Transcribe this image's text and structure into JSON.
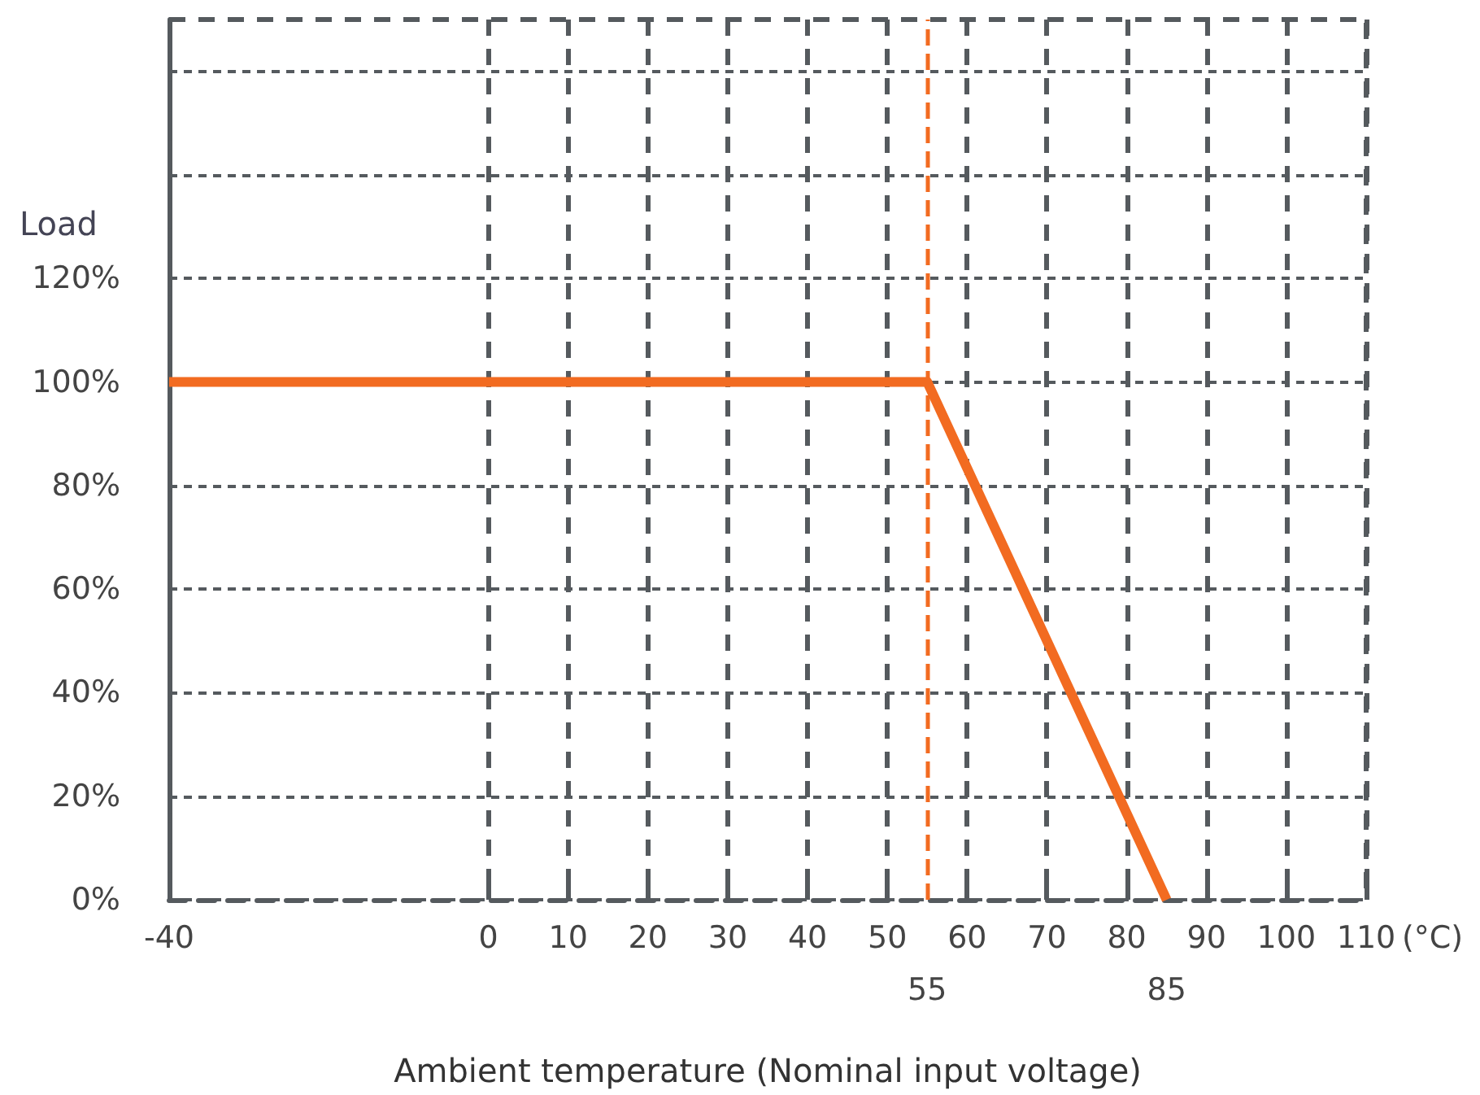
{
  "chart_data": {
    "type": "line",
    "xlabel": "Ambient temperature (Nominal input voltage)",
    "ylabel": "Load",
    "annotations": [
      "(°C)",
      {
        "text": "55",
        "x": 55,
        "y": 0
      },
      {
        "text": "85",
        "x": 85,
        "y": 0
      }
    ],
    "x": [
      -40,
      55,
      85
    ],
    "series": [
      {
        "color": "#f26b21",
        "values": [
          100,
          100,
          0
        ]
      }
    ],
    "xlim": [
      -40,
      110
    ],
    "xticks": [
      -40,
      0,
      10,
      20,
      30,
      40,
      50,
      60,
      70,
      80,
      90,
      100,
      110
    ],
    "ylim": [
      0,
      170
    ],
    "yticks": [
      {
        "value": 0,
        "label": "0%"
      },
      {
        "value": 20,
        "label": "20%"
      },
      {
        "value": 40,
        "label": "40%"
      },
      {
        "value": 60,
        "label": "60%"
      },
      {
        "value": 80,
        "label": "80%"
      },
      {
        "value": 100,
        "label": "100%"
      },
      {
        "value": 120,
        "label": "120%"
      },
      {
        "value": 140,
        "label": null
      },
      {
        "value": 160,
        "label": null
      }
    ],
    "ref_lines": [
      {
        "axis": "x",
        "value": 55,
        "color": "#f26b21",
        "line_style": "dashed"
      }
    ],
    "grid": true,
    "marker": "none",
    "line_style": "solid"
  }
}
